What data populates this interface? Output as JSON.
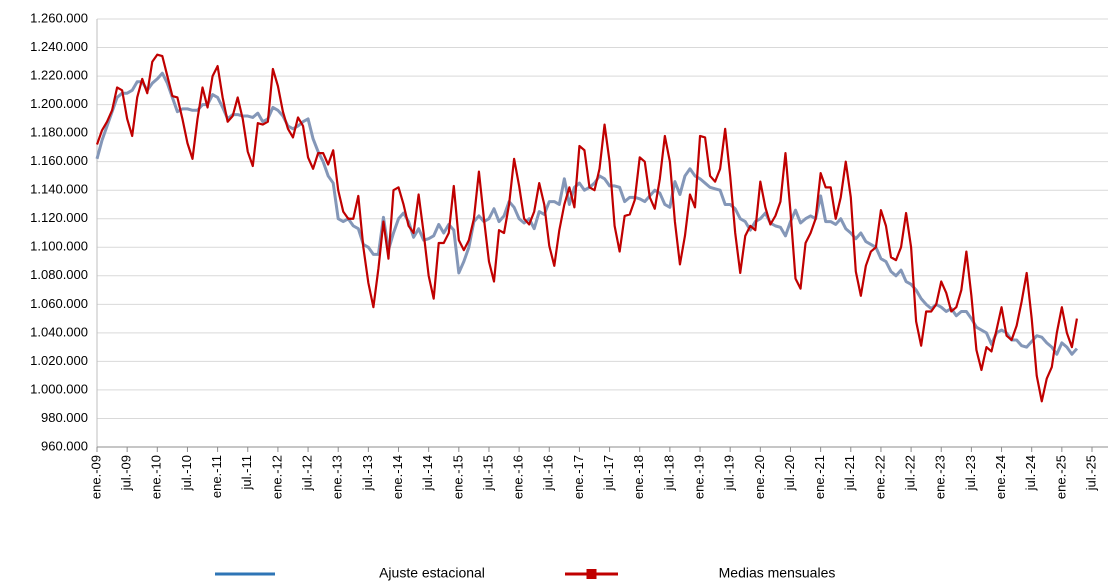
{
  "chart_data": {
    "type": "line",
    "categories": [
      "ene.-09",
      null,
      null,
      null,
      null,
      null,
      "jul.-09",
      null,
      null,
      null,
      null,
      null,
      "ene.-10",
      null,
      null,
      null,
      null,
      null,
      "jul.-10",
      null,
      null,
      null,
      null,
      null,
      "ene.-11",
      null,
      null,
      null,
      null,
      null,
      "jul.-11",
      null,
      null,
      null,
      null,
      null,
      "ene.-12",
      null,
      null,
      null,
      null,
      null,
      "jul.-12",
      null,
      null,
      null,
      null,
      null,
      "ene.-13",
      null,
      null,
      null,
      null,
      null,
      "jul.-13",
      null,
      null,
      null,
      null,
      null,
      "ene.-14",
      null,
      null,
      null,
      null,
      null,
      "jul.-14",
      null,
      null,
      null,
      null,
      null,
      "ene.-15",
      null,
      null,
      null,
      null,
      null,
      "jul.-15",
      null,
      null,
      null,
      null,
      null,
      "ene.-16",
      null,
      null,
      null,
      null,
      null,
      "jul.-16",
      null,
      null,
      null,
      null,
      null,
      "ene.-17",
      null,
      null,
      null,
      null,
      null,
      "jul.-17",
      null,
      null,
      null,
      null,
      null,
      "ene.-18",
      null,
      null,
      null,
      null,
      null,
      "jul.-18",
      null,
      null,
      null,
      null,
      null,
      "ene.-19",
      null,
      null,
      null,
      null,
      null,
      "jul.-19",
      null,
      null,
      null,
      null,
      null,
      "ene.-20",
      null,
      null,
      null,
      null,
      null,
      "jul.-20",
      null,
      null,
      null,
      null,
      null,
      "ene.-21",
      null,
      null,
      null,
      null,
      null,
      "jul.-21",
      null,
      null,
      null,
      null,
      null,
      "ene.-22",
      null,
      null,
      null,
      null,
      null,
      "jul.-22",
      null,
      null,
      null,
      null,
      null,
      "ene.-23",
      null,
      null,
      null,
      null,
      null,
      "jul.-23",
      null,
      null,
      null,
      null,
      null,
      "ene.-24",
      null,
      null,
      null,
      null,
      null,
      "jul.-24",
      null,
      null,
      null,
      null,
      null,
      "ene.-25",
      null,
      null,
      null,
      null,
      null,
      "jul.-25"
    ],
    "series": [
      {
        "name": "Ajuste estacional",
        "color": "#8497b8",
        "legend_color": "#2e75b6",
        "values": [
          1162000,
          1175000,
          1185000,
          1195000,
          1205000,
          1208000,
          1208000,
          1210000,
          1216000,
          1216000,
          1210000,
          1215000,
          1218000,
          1222000,
          1215000,
          1205000,
          1195000,
          1197000,
          1197000,
          1196000,
          1196000,
          1200000,
          1200000,
          1207000,
          1205000,
          1198000,
          1190000,
          1193000,
          1193000,
          1192000,
          1192000,
          1191000,
          1194000,
          1188000,
          1190000,
          1198000,
          1196000,
          1192000,
          1185000,
          1183000,
          1185000,
          1188000,
          1190000,
          1176000,
          1167000,
          1160000,
          1150000,
          1145000,
          1120000,
          1118000,
          1120000,
          1115000,
          1113000,
          1102000,
          1100000,
          1095000,
          1095000,
          1121000,
          1098000,
          1110000,
          1120000,
          1124000,
          1118000,
          1107000,
          1113000,
          1105000,
          1106000,
          1108000,
          1116000,
          1110000,
          1116000,
          1112000,
          1082000,
          1090000,
          1100000,
          1118000,
          1122000,
          1118000,
          1120000,
          1127000,
          1118000,
          1122000,
          1132000,
          1128000,
          1120000,
          1117000,
          1120000,
          1113000,
          1125000,
          1123000,
          1132000,
          1132000,
          1130000,
          1148000,
          1130000,
          1142000,
          1145000,
          1140000,
          1142000,
          1145000,
          1150000,
          1148000,
          1143000,
          1143000,
          1142000,
          1132000,
          1135000,
          1135000,
          1134000,
          1132000,
          1136000,
          1140000,
          1138000,
          1130000,
          1128000,
          1146000,
          1137000,
          1150000,
          1155000,
          1150000,
          1148000,
          1145000,
          1142000,
          1141000,
          1140000,
          1130000,
          1130000,
          1127000,
          1120000,
          1118000,
          1112000,
          1118000,
          1120000,
          1124000,
          1117000,
          1115000,
          1114000,
          1108000,
          1118000,
          1126000,
          1117000,
          1120000,
          1122000,
          1120000,
          1136000,
          1118000,
          1118000,
          1116000,
          1120000,
          1113000,
          1110000,
          1106000,
          1110000,
          1104000,
          1102000,
          1100000,
          1092000,
          1090000,
          1083000,
          1080000,
          1084000,
          1076000,
          1074000,
          1070000,
          1064000,
          1060000,
          1057000,
          1060000,
          1058000,
          1055000,
          1057000,
          1052000,
          1055000,
          1055000,
          1050000,
          1044000,
          1042000,
          1040000,
          1032000,
          1040000,
          1042000,
          1040000,
          1035000,
          1035000,
          1031000,
          1030000,
          1034000,
          1038000,
          1037000,
          1033000,
          1030000,
          1025000,
          1033000,
          1030000,
          1025000,
          1029000,
          null,
          null,
          null
        ]
      },
      {
        "name": "Medias mensuales",
        "color": "#c00000",
        "values": [
          1172000,
          1182000,
          1188000,
          1196000,
          1212000,
          1210000,
          1190000,
          1178000,
          1205000,
          1218000,
          1208000,
          1230000,
          1235000,
          1234000,
          1220000,
          1206000,
          1205000,
          1190000,
          1173000,
          1162000,
          1190000,
          1212000,
          1198000,
          1220000,
          1227000,
          1205000,
          1188000,
          1192000,
          1205000,
          1190000,
          1167000,
          1157000,
          1187000,
          1186000,
          1188000,
          1225000,
          1213000,
          1195000,
          1183000,
          1177000,
          1191000,
          1185000,
          1163000,
          1155000,
          1166000,
          1166000,
          1158000,
          1168000,
          1140000,
          1125000,
          1120000,
          1120000,
          1136000,
          1100000,
          1075000,
          1058000,
          1085000,
          1118000,
          1092000,
          1140000,
          1142000,
          1130000,
          1115000,
          1110000,
          1137000,
          1110000,
          1080000,
          1064000,
          1103000,
          1103000,
          1110000,
          1143000,
          1105000,
          1098000,
          1105000,
          1120000,
          1153000,
          1120000,
          1090000,
          1076000,
          1112000,
          1110000,
          1130000,
          1162000,
          1143000,
          1120000,
          1116000,
          1125000,
          1145000,
          1130000,
          1101000,
          1087000,
          1112000,
          1130000,
          1142000,
          1128000,
          1171000,
          1168000,
          1142000,
          1140000,
          1155000,
          1186000,
          1160000,
          1115000,
          1097000,
          1122000,
          1123000,
          1133000,
          1163000,
          1160000,
          1135000,
          1127000,
          1148000,
          1178000,
          1160000,
          1118000,
          1088000,
          1108000,
          1137000,
          1128000,
          1178000,
          1177000,
          1150000,
          1146000,
          1155000,
          1183000,
          1150000,
          1110000,
          1082000,
          1108000,
          1115000,
          1112000,
          1146000,
          1128000,
          1116000,
          1122000,
          1132000,
          1166000,
          1125000,
          1078000,
          1071000,
          1103000,
          1110000,
          1120000,
          1152000,
          1142000,
          1142000,
          1120000,
          1135000,
          1160000,
          1135000,
          1083000,
          1066000,
          1087000,
          1097000,
          1100000,
          1126000,
          1115000,
          1093000,
          1091000,
          1100000,
          1124000,
          1100000,
          1048000,
          1031000,
          1055000,
          1055000,
          1060000,
          1076000,
          1068000,
          1055000,
          1058000,
          1070000,
          1097000,
          1066000,
          1028000,
          1014000,
          1030000,
          1027000,
          1042000,
          1058000,
          1038000,
          1035000,
          1045000,
          1062000,
          1082000,
          1050000,
          1010000,
          992000,
          1008000,
          1016000,
          1040000,
          1058000,
          1040000,
          1030000,
          1050000,
          null,
          null,
          null
        ]
      }
    ],
    "ylim": [
      960000,
      1260000
    ],
    "yticks": [
      {
        "value": 1260000,
        "label": "1.260.000"
      },
      {
        "value": 1240000,
        "label": "1.240.000"
      },
      {
        "value": 1220000,
        "label": "1.220.000"
      },
      {
        "value": 1200000,
        "label": "1.200.000"
      },
      {
        "value": 1180000,
        "label": "1.180.000"
      },
      {
        "value": 1160000,
        "label": "1.160.000"
      },
      {
        "value": 1140000,
        "label": "1.140.000"
      },
      {
        "value": 1120000,
        "label": "1.120.000"
      },
      {
        "value": 1100000,
        "label": "1.100.000"
      },
      {
        "value": 1080000,
        "label": "1.080.000"
      },
      {
        "value": 1060000,
        "label": "1.060.000"
      },
      {
        "value": 1040000,
        "label": "1.040.000"
      },
      {
        "value": 1020000,
        "label": "1.020.000"
      },
      {
        "value": 1000000,
        "label": "1.000.000"
      },
      {
        "value": 980000,
        "label": "980.000"
      },
      {
        "value": 960000,
        "label": "960.000"
      }
    ],
    "grid": true,
    "legend": "bottom"
  }
}
